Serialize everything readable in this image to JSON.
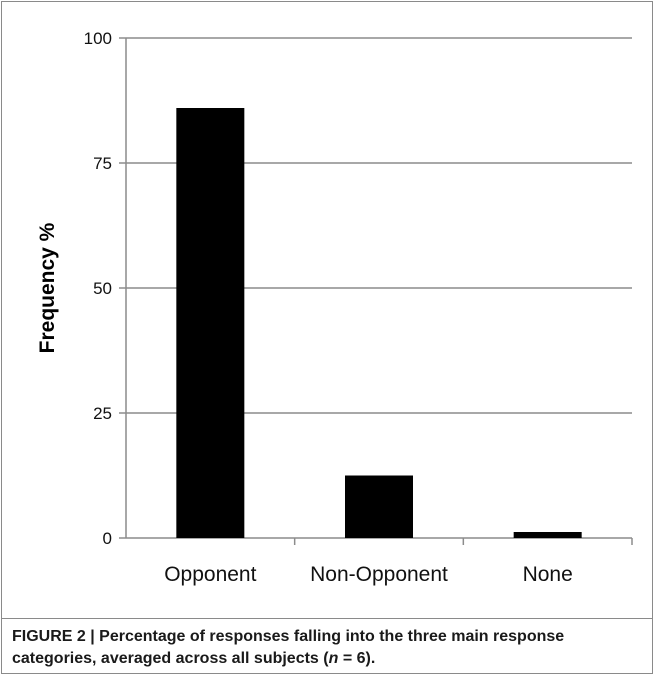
{
  "chart_data": {
    "type": "bar",
    "categories": [
      "Opponent",
      "Non-Opponent",
      "None"
    ],
    "values": [
      86,
      12.5,
      1.2
    ],
    "title": "",
    "xlabel": "",
    "ylabel": "Frequency %",
    "ylim": [
      0,
      100
    ],
    "yticks": [
      "0",
      "25",
      "50",
      "75",
      "100"
    ],
    "grid": true,
    "legend": "none",
    "bar_color": "#000000",
    "grid_color": "#8c8c8c"
  },
  "caption": {
    "label": "FIGURE 2 | ",
    "text_part1": "Percentage of responses falling into the three main response categories, averaged across all subjects (",
    "n_symbol": "n",
    "text_part2": " = 6)."
  }
}
